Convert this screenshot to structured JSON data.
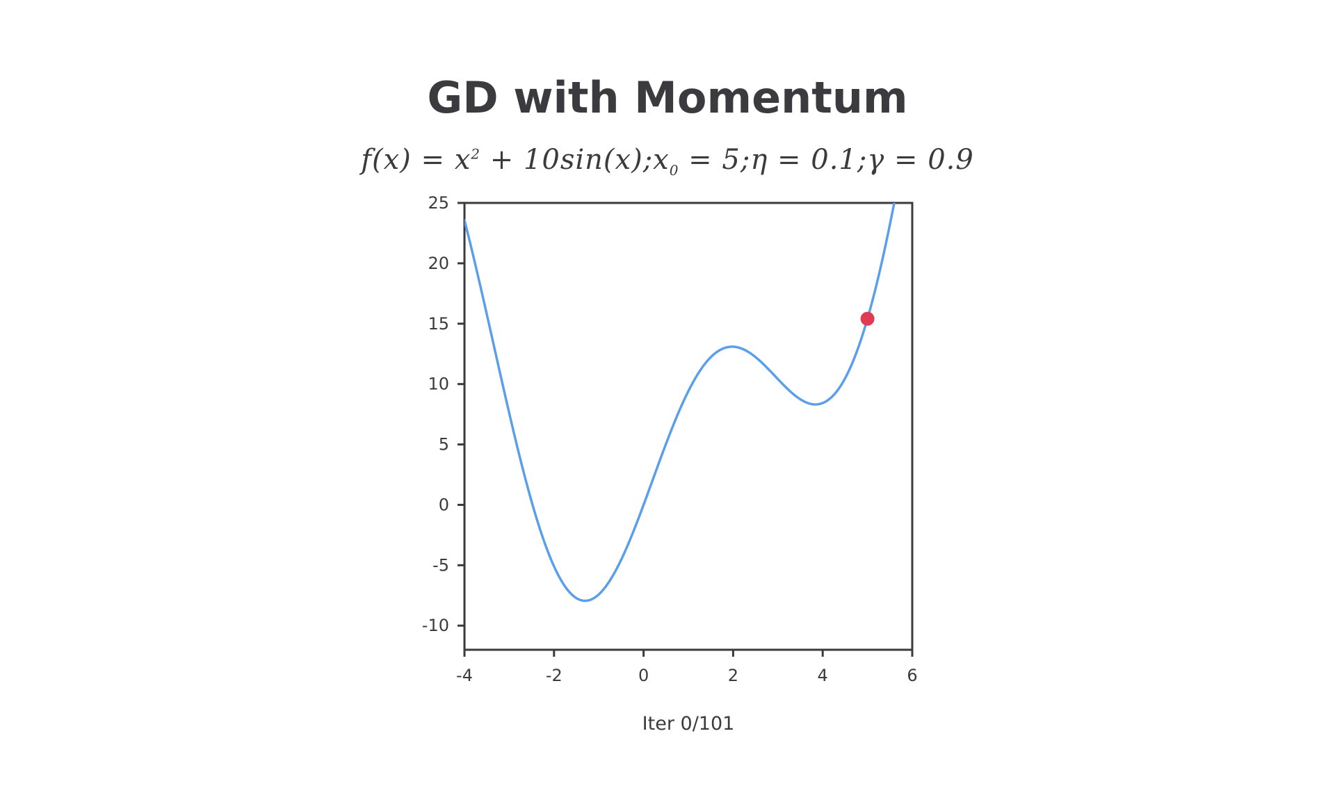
{
  "chart_data": {
    "type": "line",
    "title": "GD with Momentum",
    "subtitle": {
      "prefix": "f(x) = x",
      "exp": "2",
      "mid": " + 10sin(x);x",
      "sub": "0",
      "suffix": " = 5;η = 0.1;γ = 0.9"
    },
    "xlabel": "Iter 0/101",
    "ylabel": "",
    "xlim": [
      -4,
      6
    ],
    "ylim": [
      -12,
      25
    ],
    "xticks": [
      -4,
      -2,
      0,
      2,
      4,
      6
    ],
    "yticks": [
      -10,
      -5,
      0,
      5,
      10,
      15,
      20,
      25
    ],
    "grid": false,
    "series": [
      {
        "function": "x^2 + 10*sin(x)",
        "x": [
          -4.0,
          -3.5,
          -3.0,
          -2.5,
          -2.0,
          -1.5,
          -1.306,
          -1.0,
          -0.5,
          0.0,
          0.5,
          1.0,
          1.5,
          2.0,
          2.5,
          3.0,
          3.5,
          3.837,
          4.0,
          4.5,
          5.0,
          5.5
        ],
        "y": [
          23.57,
          15.76,
          7.59,
          0.27,
          -5.09,
          -7.72,
          -7.95,
          -7.41,
          -4.54,
          0.0,
          5.04,
          9.41,
          12.22,
          13.09,
          12.23,
          10.41,
          8.74,
          8.32,
          8.43,
          10.47,
          15.41,
          23.2
        ],
        "color": "#5b9ee9"
      }
    ],
    "point": {
      "x": 5,
      "y": 15.41,
      "color": "#e23a55"
    }
  },
  "colors": {
    "text": "#3a3a3f",
    "axis": "#3a3a3f",
    "curve": "#5b9ee9",
    "marker": "#e23a55",
    "background": "#ffffff"
  }
}
